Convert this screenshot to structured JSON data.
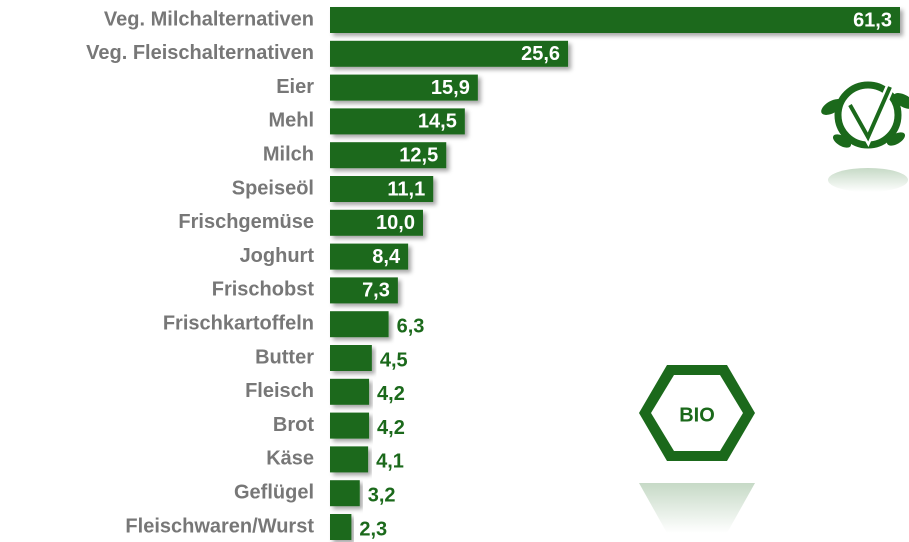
{
  "chart_data": {
    "type": "bar",
    "orientation": "horizontal",
    "categories": [
      "Veg. Milchalternativen",
      "Veg. Fleischalternativen",
      "Eier",
      "Mehl",
      "Milch",
      "Speiseöl",
      "Frischgemüse",
      "Joghurt",
      "Frischobst",
      "Frischkartoffeln",
      "Butter",
      "Fleisch",
      "Brot",
      "Käse",
      "Geflügel",
      "Fleischwaren/Wurst"
    ],
    "values": [
      61.3,
      25.6,
      15.9,
      14.5,
      12.5,
      11.1,
      10.0,
      8.4,
      7.3,
      6.3,
      4.5,
      4.2,
      4.2,
      4.1,
      3.2,
      2.3
    ],
    "value_labels": [
      "61,3",
      "25,6",
      "15,9",
      "14,5",
      "12,5",
      "11,1",
      "10,0",
      "8,4",
      "7,3",
      "6,3",
      "4,5",
      "4,2",
      "4,2",
      "4,1",
      "3,2",
      "2,3"
    ],
    "color": "#1b691b",
    "logo_label": "BIO"
  }
}
